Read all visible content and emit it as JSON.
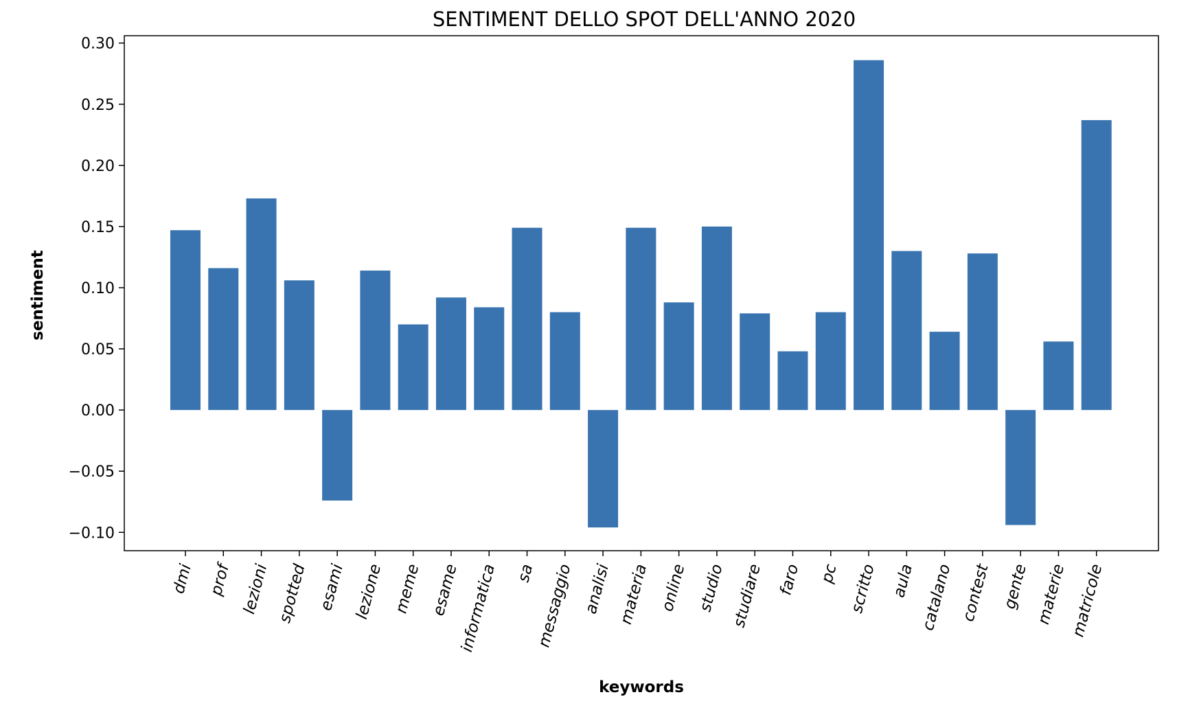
{
  "chart_data": {
    "type": "bar",
    "title": "SENTIMENT DELLO SPOT DELL'ANNO 2020",
    "xlabel": "keywords",
    "ylabel": "sentiment",
    "categories": [
      "dmi",
      "prof",
      "lezioni",
      "spotted",
      "esami",
      "lezione",
      "meme",
      "esame",
      "informatica",
      "sa",
      "messaggio",
      "analisi",
      "materia",
      "online",
      "studio",
      "studiare",
      "faro",
      "pc",
      "scritto",
      "aula",
      "catalano",
      "contest",
      "gente",
      "materie",
      "matricole"
    ],
    "values": [
      0.147,
      0.116,
      0.173,
      0.106,
      -0.074,
      0.114,
      0.07,
      0.092,
      0.084,
      0.149,
      0.08,
      -0.096,
      0.149,
      0.088,
      0.15,
      0.079,
      0.048,
      0.08,
      0.286,
      0.13,
      0.064,
      0.128,
      -0.094,
      0.056,
      0.237
    ],
    "ylim": [
      -0.115,
      0.306
    ],
    "yticks": [
      -0.1,
      -0.05,
      0.0,
      0.05,
      0.1,
      0.15,
      0.2,
      0.25,
      0.3
    ],
    "ytick_labels": [
      "−0.10",
      "−0.05",
      "0.00",
      "0.05",
      "0.10",
      "0.15",
      "0.20",
      "0.25",
      "0.30"
    ],
    "bar_color": "#3a74b0",
    "category_label_rotation_deg": -75,
    "grid": false,
    "legend": "none"
  }
}
